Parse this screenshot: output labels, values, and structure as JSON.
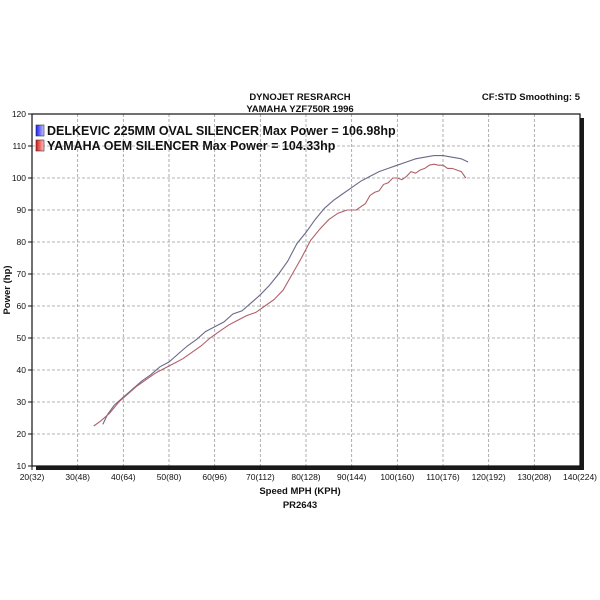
{
  "header": {
    "title_line1": "DYNOJET RESRARCH",
    "title_line2": "YAMAHA YZF750R 1996",
    "settings": "CF:STD Smoothing: 5"
  },
  "footer": {
    "run_id": "PR2643"
  },
  "colors": {
    "series1": "#6a6a8c",
    "series2": "#b0606a",
    "grid": "#9a9a9a"
  },
  "chart_data": {
    "type": "line",
    "xlabel": "Speed MPH (KPH)",
    "ylabel": "Power (hp)",
    "xlim": [
      20,
      140
    ],
    "ylim": [
      10,
      120
    ],
    "x_ticks": [
      20,
      30,
      40,
      50,
      60,
      70,
      80,
      90,
      100,
      110,
      120,
      130,
      140
    ],
    "x_tick_labels": [
      "20(32)",
      "30(48)",
      "40(64)",
      "50(80)",
      "60(96)",
      "70(112)",
      "80(128)",
      "90(144)",
      "100(160)",
      "110(176)",
      "120(192)",
      "130(208)",
      "140(224)"
    ],
    "y_ticks": [
      10,
      20,
      30,
      40,
      50,
      60,
      70,
      80,
      90,
      100,
      110,
      120
    ],
    "grid": true,
    "legend_position": "top-left",
    "series": [
      {
        "name": "DELKEVIC 225MM OVAL SILENCER Max Power = 106.98hp",
        "x": [
          35.5,
          36.5,
          38,
          40,
          42,
          44,
          46,
          48,
          50,
          52,
          54,
          56,
          58,
          60,
          62,
          64,
          66,
          68,
          70,
          72,
          74,
          76,
          78,
          80,
          82,
          84,
          86,
          88,
          90,
          92,
          94,
          96,
          98,
          100,
          102,
          104,
          106,
          108,
          110,
          112,
          114,
          115.5
        ],
        "y": [
          23,
          26,
          29,
          31.5,
          34,
          36.5,
          38.5,
          41,
          42.5,
          45,
          47.5,
          49.5,
          52,
          53.5,
          55,
          57.5,
          58.5,
          61,
          63.5,
          66.5,
          70,
          74,
          79.5,
          83,
          87,
          90.5,
          93,
          95,
          97,
          99,
          100.5,
          102,
          103,
          104,
          105,
          106,
          106.5,
          107,
          107,
          106.5,
          106,
          105
        ]
      },
      {
        "name": "YAMAHA OEM SILENCER Max Power = 104.33hp",
        "x": [
          33.5,
          35,
          37,
          39,
          41,
          43,
          45,
          47,
          49,
          51,
          53,
          55,
          57,
          59,
          61,
          63,
          65,
          67,
          69,
          71,
          73,
          75,
          77,
          79,
          81,
          83,
          85,
          87,
          89,
          91,
          93,
          94,
          95,
          96,
          97,
          98,
          99,
          100,
          101,
          102,
          103,
          104,
          105,
          106,
          107,
          108,
          109,
          110,
          111,
          112,
          113,
          114,
          115
        ],
        "y": [
          22.5,
          24,
          26.5,
          30,
          32.5,
          35,
          37,
          39,
          40.5,
          42,
          43.5,
          45.5,
          47.5,
          50,
          52,
          54,
          55.5,
          57,
          58,
          60,
          62,
          65,
          70,
          75,
          80.5,
          84,
          87,
          89,
          90,
          90,
          92,
          94.5,
          95.5,
          96,
          98,
          98.5,
          100,
          100,
          99.5,
          100.5,
          102,
          101.5,
          102.5,
          103,
          104,
          104.3,
          104,
          104,
          103,
          103,
          102.5,
          102,
          100
        ]
      }
    ]
  }
}
